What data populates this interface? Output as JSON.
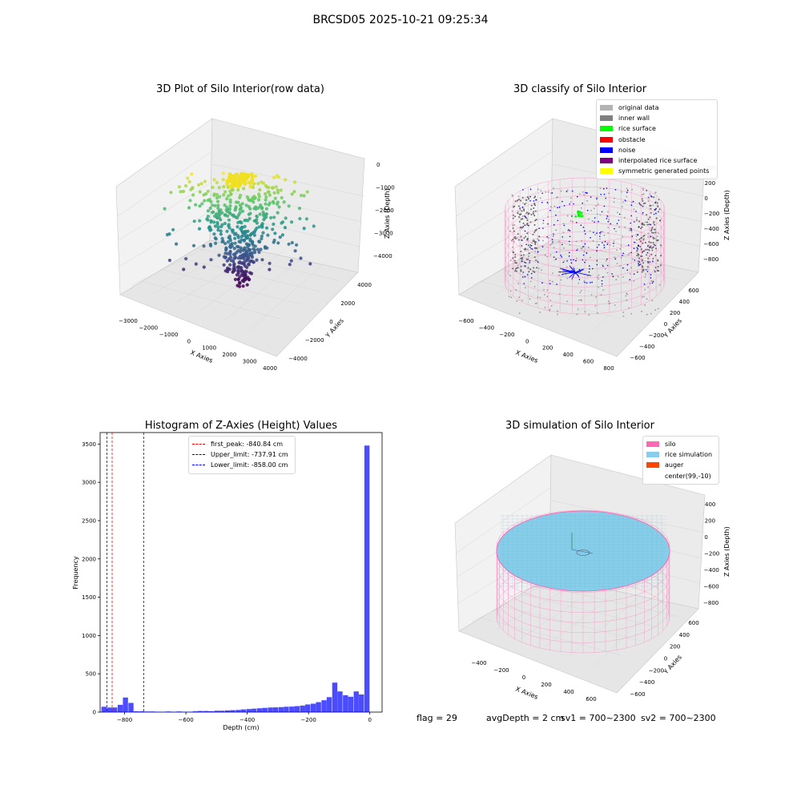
{
  "suptitle": "BRCSD05 2025-10-21 09:25:34",
  "plots": {
    "raw": {
      "title": "3D Plot of Silo Interior(row data)",
      "xlabel": "X Axies",
      "ylabel": "Y Axies",
      "zlabel": "Z Axies (Depth)",
      "xticks": [
        "−3000",
        "−2000",
        "−1000",
        "0",
        "1000",
        "2000",
        "3000",
        "4000"
      ],
      "yticks": [
        "−4000",
        "−2000",
        "0",
        "2000",
        "4000"
      ],
      "zticks": [
        "0",
        "−1000",
        "−2000",
        "−3000",
        "−4000"
      ],
      "colormap": "viridis"
    },
    "classify": {
      "title": "3D classify of Silo Interior",
      "xlabel": "X Axies",
      "ylabel": "Y Axies",
      "zlabel": "Z Axies (Depth)",
      "xticks": [
        "−600",
        "−400",
        "−200",
        "0",
        "200",
        "400",
        "600",
        "800"
      ],
      "yticks": [
        "−600",
        "−400",
        "−200",
        "0",
        "200",
        "400",
        "600"
      ],
      "zticks": [
        "400",
        "200",
        "0",
        "−200",
        "−400",
        "−600",
        "−800"
      ],
      "legend": [
        {
          "label": "original data",
          "color": "#b3b3b3"
        },
        {
          "label": "inner wall",
          "color": "#808080"
        },
        {
          "label": "rice surface",
          "color": "#00ff00"
        },
        {
          "label": "obstacle",
          "color": "#ff0000"
        },
        {
          "label": "noise",
          "color": "#0000ff"
        },
        {
          "label": "interpolated rice surface",
          "color": "#800080"
        },
        {
          "label": "symmetric generated points",
          "color": "#ffff00"
        }
      ]
    },
    "simulation": {
      "title": "3D simulation of Silo Interior",
      "xlabel": "X Axies",
      "ylabel": "Y Axies",
      "zlabel": "Z Axies (Depth)",
      "xticks": [
        "−400",
        "−200",
        "0",
        "200",
        "400",
        "600"
      ],
      "yticks": [
        "−600",
        "−400",
        "−200",
        "0",
        "200",
        "400",
        "600"
      ],
      "zticks": [
        "400",
        "200",
        "0",
        "−200",
        "−400",
        "−600",
        "−800"
      ],
      "legend": [
        {
          "label": "silo",
          "color": "#ff69b4"
        },
        {
          "label": "rice simulation",
          "color": "#87ceeb"
        },
        {
          "label": "auger",
          "color": "#ff4500"
        },
        {
          "label": "center(99,-10)",
          "color": "#ffffff"
        }
      ]
    }
  },
  "chart_data": [
    {
      "type": "bar",
      "title": "Histogram of Z-Axies (Height) Values",
      "xlabel": "Depth (cm)",
      "ylabel": "Frequency",
      "xlim": [
        -880,
        40
      ],
      "ylim": [
        0,
        3650
      ],
      "bar_color": "#0000ff",
      "bin_width": 17.5,
      "bins": [
        {
          "x": -867,
          "y": 70
        },
        {
          "x": -849,
          "y": 60
        },
        {
          "x": -832,
          "y": 60
        },
        {
          "x": -814,
          "y": 95
        },
        {
          "x": -797,
          "y": 190
        },
        {
          "x": -779,
          "y": 120
        },
        {
          "x": -762,
          "y": 10
        },
        {
          "x": -744,
          "y": 10
        },
        {
          "x": -727,
          "y": 8
        },
        {
          "x": -709,
          "y": 8
        },
        {
          "x": -692,
          "y": 5
        },
        {
          "x": -674,
          "y": 3
        },
        {
          "x": -657,
          "y": 8
        },
        {
          "x": -639,
          "y": 3
        },
        {
          "x": -622,
          "y": 8
        },
        {
          "x": -604,
          "y": 3
        },
        {
          "x": -587,
          "y": 5
        },
        {
          "x": -569,
          "y": 10
        },
        {
          "x": -552,
          "y": 15
        },
        {
          "x": -534,
          "y": 15
        },
        {
          "x": -517,
          "y": 12
        },
        {
          "x": -499,
          "y": 18
        },
        {
          "x": -482,
          "y": 18
        },
        {
          "x": -464,
          "y": 22
        },
        {
          "x": -447,
          "y": 25
        },
        {
          "x": -429,
          "y": 28
        },
        {
          "x": -412,
          "y": 35
        },
        {
          "x": -394,
          "y": 40
        },
        {
          "x": -377,
          "y": 45
        },
        {
          "x": -359,
          "y": 50
        },
        {
          "x": -342,
          "y": 55
        },
        {
          "x": -324,
          "y": 60
        },
        {
          "x": -307,
          "y": 62
        },
        {
          "x": -289,
          "y": 65
        },
        {
          "x": -272,
          "y": 70
        },
        {
          "x": -254,
          "y": 72
        },
        {
          "x": -237,
          "y": 78
        },
        {
          "x": -219,
          "y": 85
        },
        {
          "x": -202,
          "y": 100
        },
        {
          "x": -184,
          "y": 110
        },
        {
          "x": -167,
          "y": 130
        },
        {
          "x": -149,
          "y": 155
        },
        {
          "x": -132,
          "y": 195
        },
        {
          "x": -114,
          "y": 385
        },
        {
          "x": -97,
          "y": 270
        },
        {
          "x": -79,
          "y": 220
        },
        {
          "x": -62,
          "y": 200
        },
        {
          "x": -44,
          "y": 270
        },
        {
          "x": -27,
          "y": 230
        },
        {
          "x": -9,
          "y": 3480
        }
      ],
      "vlines": [
        {
          "label": "first_peak: -840.84 cm",
          "x": -840.84,
          "color": "#ff0000"
        },
        {
          "label": "Upper_limit: -737.91 cm",
          "x": -737.91,
          "color": "#0000ff"
        },
        {
          "label": "Lower_limit: -858.00 cm",
          "x": -858.0,
          "color": "#0000ff"
        }
      ],
      "xticks": [
        -800,
        -600,
        -400,
        -200,
        0
      ],
      "yticks": [
        0,
        500,
        1000,
        1500,
        2000,
        2500,
        3000,
        3500
      ]
    }
  ],
  "footer": {
    "flag": "flag = 29",
    "avg": "avgDepth = 2 cm",
    "sv1": "sv1 = 700~2300",
    "sv2": "sv2 = 700~2300"
  }
}
